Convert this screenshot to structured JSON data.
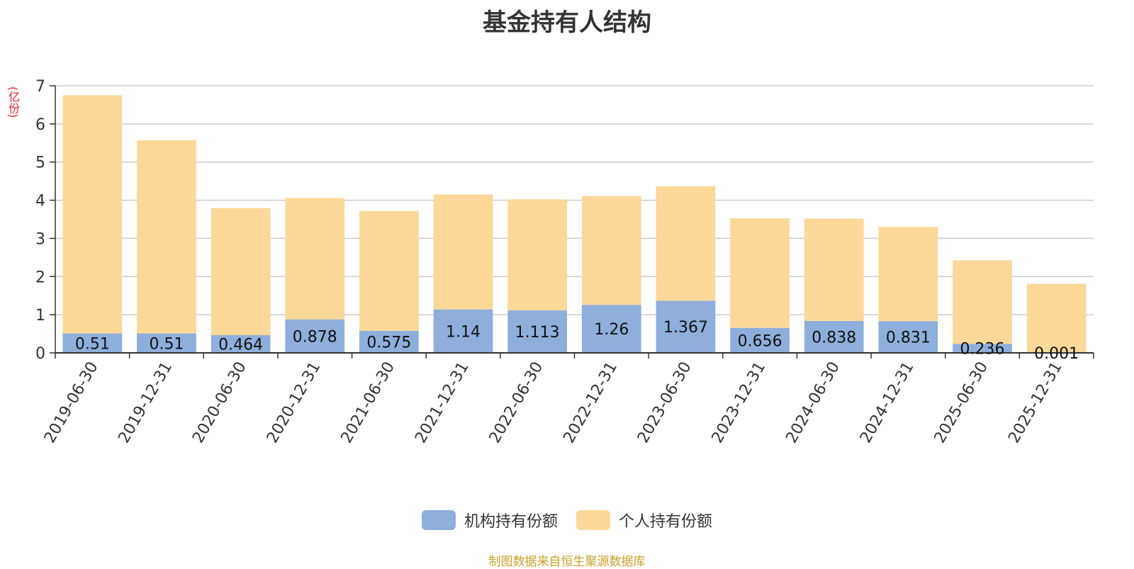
{
  "chart_data": {
    "type": "bar",
    "stacked": true,
    "title": "基金持有人结构",
    "ylabel": "(亿份)",
    "ylim": [
      0,
      7
    ],
    "yticks": [
      0,
      1,
      2,
      3,
      4,
      5,
      6,
      7
    ],
    "grid": true,
    "legend_position": "bottom-center",
    "categories": [
      "2019-06-30",
      "2019-12-31",
      "2020-06-30",
      "2020-12-31",
      "2021-06-30",
      "2021-12-31",
      "2022-06-30",
      "2022-12-31",
      "2023-06-30",
      "2023-12-31",
      "2024-06-30",
      "2024-12-31",
      "2025-06-30",
      "2025-12-31"
    ],
    "series": [
      {
        "name": "机构持有份额",
        "color": "#8eaedc",
        "values": [
          0.51,
          0.51,
          0.464,
          0.878,
          0.575,
          1.14,
          1.113,
          1.26,
          1.367,
          0.656,
          0.838,
          0.831,
          0.236,
          0.001
        ],
        "labels": [
          "0.51",
          "0.51",
          "0.464",
          "0.878",
          "0.575",
          "1.14",
          "1.113",
          "1.26",
          "1.367",
          "0.656",
          "0.838",
          "0.831",
          "0.236",
          "0.001"
        ]
      },
      {
        "name": "个人持有份额",
        "color": "#fdd899",
        "values": [
          6.24,
          5.06,
          3.33,
          3.18,
          3.14,
          3.01,
          2.91,
          2.85,
          3.0,
          2.87,
          2.68,
          2.47,
          2.19,
          1.81
        ]
      }
    ]
  },
  "footer": {
    "source": "制图数据来自恒生聚源数据库"
  }
}
